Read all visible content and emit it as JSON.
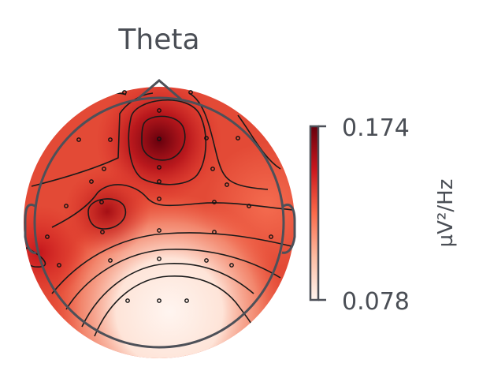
{
  "chart_data": {
    "type": "heatmap",
    "subtype": "eeg-topomap",
    "title": "Theta",
    "colormap": "Reds",
    "colorbar": {
      "min": 0.078,
      "max": 0.174,
      "min_label": "0.078",
      "max_label": "0.174",
      "unit_label": "µV²/Hz"
    },
    "hotspots": [
      {
        "region": "frontal-midline",
        "peak": 0.174
      },
      {
        "region": "left-fronto-central",
        "peak": 0.158
      },
      {
        "region": "left-temporal",
        "peak": 0.15
      }
    ],
    "minimum_region": "parieto-occipital",
    "sensor_count": 32
  }
}
